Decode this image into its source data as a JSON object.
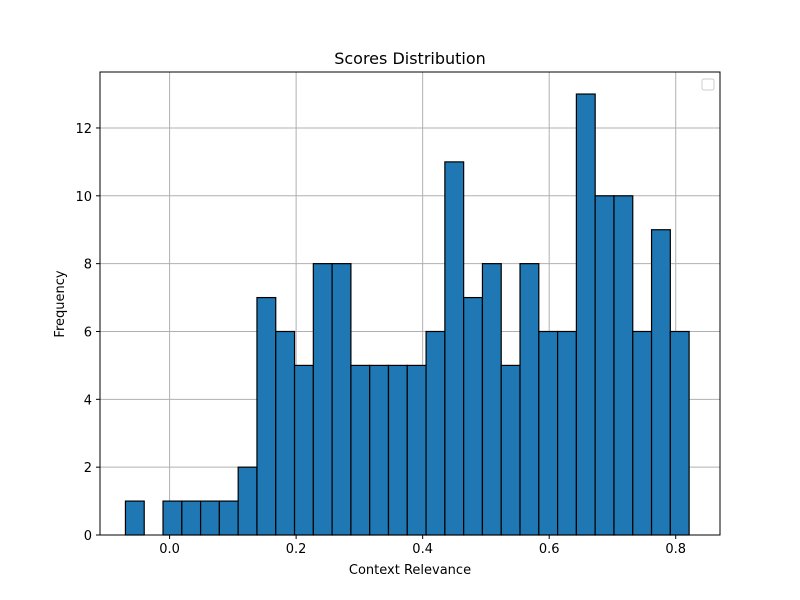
{
  "chart_data": {
    "type": "bar",
    "subtype": "histogram",
    "title": "Scores Distribution",
    "xlabel": "Context Relevance",
    "ylabel": "Frequency",
    "xlim": [
      -0.11,
      0.87
    ],
    "ylim": [
      0,
      13.65
    ],
    "bin_width": 0.0297,
    "bin_starts": [
      -0.0698,
      -0.0401,
      -0.0104,
      0.0193,
      0.049,
      0.0787,
      0.1084,
      0.1381,
      0.1678,
      0.1975,
      0.2272,
      0.2569,
      0.2866,
      0.3163,
      0.346,
      0.3757,
      0.4054,
      0.4351,
      0.4648,
      0.4945,
      0.5242,
      0.5539,
      0.5836,
      0.6133,
      0.643,
      0.6727,
      0.7024,
      0.7321,
      0.7618,
      0.7915
    ],
    "values": [
      1,
      0,
      1,
      1,
      1,
      1,
      2,
      7,
      6,
      5,
      8,
      8,
      5,
      5,
      5,
      5,
      6,
      11,
      7,
      8,
      5,
      8,
      6,
      6,
      13,
      10,
      10,
      6,
      9,
      6
    ],
    "x_ticks": [
      0.0,
      0.2,
      0.4,
      0.6,
      0.8
    ],
    "x_tick_labels": [
      "0.0",
      "0.2",
      "0.4",
      "0.6",
      "0.8"
    ],
    "y_ticks": [
      0,
      2,
      4,
      6,
      8,
      10,
      12
    ],
    "y_tick_labels": [
      "0",
      "2",
      "4",
      "6",
      "8",
      "10",
      "12"
    ],
    "grid": true,
    "legend": "top-right",
    "legend_entries": [],
    "colors": {
      "bar_fill": "#1f77b4",
      "bar_edge": "#000000",
      "grid": "#b0b0b0",
      "axes": "#000000"
    }
  }
}
